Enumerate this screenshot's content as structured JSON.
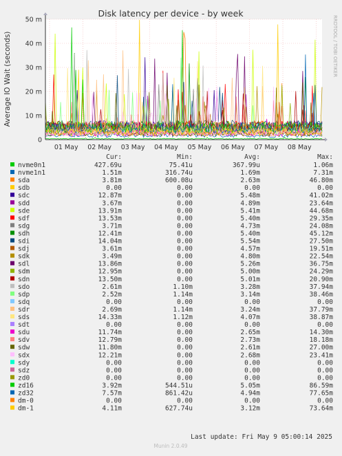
{
  "chart_data": {
    "type": "line",
    "title": "Disk latency per device - by week",
    "ylabel": "Average IO Wait (seconds)",
    "watermark": "RRDTOOL / TOBI OETIKER",
    "x_ticks": [
      "01 May",
      "02 May",
      "03 May",
      "04 May",
      "05 May",
      "06 May",
      "07 May",
      "08 May"
    ],
    "y_ticks": [
      {
        "value": 0,
        "label": "0"
      },
      {
        "value": 0.01,
        "label": "10 m"
      },
      {
        "value": 0.02,
        "label": "20 m"
      },
      {
        "value": 0.03,
        "label": "30 m"
      },
      {
        "value": 0.04,
        "label": "40 m"
      },
      {
        "value": 0.05,
        "label": "50 m"
      }
    ],
    "ylim": [
      0,
      0.05
    ],
    "grid": true,
    "columns": [
      "Cur:",
      "Min:",
      "Avg:",
      "Max:"
    ],
    "series": [
      {
        "name": "nvme0n1",
        "color": "#00cc00",
        "cur": "427.69u",
        "min": "75.41u",
        "avg": "367.99u",
        "max": "1.06m"
      },
      {
        "name": "nvme1n1",
        "color": "#0066b3",
        "cur": "1.51m",
        "min": "316.74u",
        "avg": "1.69m",
        "max": "7.31m"
      },
      {
        "name": "sda",
        "color": "#ff8000",
        "cur": "3.81m",
        "min": "600.08u",
        "avg": "2.63m",
        "max": "46.80m"
      },
      {
        "name": "sdb",
        "color": "#ffcc00",
        "cur": "0.00",
        "min": "0.00",
        "avg": "0.00",
        "max": "0.00"
      },
      {
        "name": "sdc",
        "color": "#330099",
        "cur": "12.87m",
        "min": "0.00",
        "avg": "5.48m",
        "max": "41.02m"
      },
      {
        "name": "sdd",
        "color": "#990099",
        "cur": "3.67m",
        "min": "0.00",
        "avg": "4.89m",
        "max": "23.64m"
      },
      {
        "name": "sde",
        "color": "#ccff00",
        "cur": "13.91m",
        "min": "0.00",
        "avg": "5.41m",
        "max": "44.68m"
      },
      {
        "name": "sdf",
        "color": "#ff0000",
        "cur": "13.53m",
        "min": "0.00",
        "avg": "5.40m",
        "max": "29.35m"
      },
      {
        "name": "sdg",
        "color": "#808080",
        "cur": "3.71m",
        "min": "0.00",
        "avg": "4.73m",
        "max": "24.08m"
      },
      {
        "name": "sdh",
        "color": "#008f00",
        "cur": "12.41m",
        "min": "0.00",
        "avg": "5.40m",
        "max": "45.12m"
      },
      {
        "name": "sdi",
        "color": "#00487d",
        "cur": "14.04m",
        "min": "0.00",
        "avg": "5.54m",
        "max": "27.50m"
      },
      {
        "name": "sdj",
        "color": "#b35a00",
        "cur": "3.61m",
        "min": "0.00",
        "avg": "4.57m",
        "max": "19.51m"
      },
      {
        "name": "sdk",
        "color": "#b38f00",
        "cur": "3.49m",
        "min": "0.00",
        "avg": "4.80m",
        "max": "22.54m"
      },
      {
        "name": "sdl",
        "color": "#6b006b",
        "cur": "13.86m",
        "min": "0.00",
        "avg": "5.26m",
        "max": "36.75m"
      },
      {
        "name": "sdm",
        "color": "#8fb300",
        "cur": "12.95m",
        "min": "0.00",
        "avg": "5.00m",
        "max": "24.29m"
      },
      {
        "name": "sdn",
        "color": "#b30000",
        "cur": "13.50m",
        "min": "0.00",
        "avg": "5.01m",
        "max": "20.90m"
      },
      {
        "name": "sdo",
        "color": "#bebebe",
        "cur": "2.61m",
        "min": "1.10m",
        "avg": "3.28m",
        "max": "37.94m"
      },
      {
        "name": "sdp",
        "color": "#80ff80",
        "cur": "2.52m",
        "min": "1.14m",
        "avg": "3.14m",
        "max": "38.46m"
      },
      {
        "name": "sdq",
        "color": "#80c9ff",
        "cur": "0.00",
        "min": "0.00",
        "avg": "0.00",
        "max": "0.00"
      },
      {
        "name": "sdr",
        "color": "#ffc080",
        "cur": "2.69m",
        "min": "1.14m",
        "avg": "3.24m",
        "max": "37.79m"
      },
      {
        "name": "sds",
        "color": "#ffe680",
        "cur": "14.33m",
        "min": "1.12m",
        "avg": "4.07m",
        "max": "38.87m"
      },
      {
        "name": "sdt",
        "color": "#aa80ff",
        "cur": "0.00",
        "min": "0.00",
        "avg": "0.00",
        "max": "0.00"
      },
      {
        "name": "sdu",
        "color": "#ee00cc",
        "cur": "11.74m",
        "min": "0.00",
        "avg": "2.65m",
        "max": "14.30m"
      },
      {
        "name": "sdv",
        "color": "#ff8080",
        "cur": "12.79m",
        "min": "0.00",
        "avg": "2.73m",
        "max": "18.18m"
      },
      {
        "name": "sdw",
        "color": "#666600",
        "cur": "11.80m",
        "min": "0.00",
        "avg": "2.61m",
        "max": "27.00m"
      },
      {
        "name": "sdx",
        "color": "#ffbfff",
        "cur": "12.21m",
        "min": "0.00",
        "avg": "2.68m",
        "max": "23.41m"
      },
      {
        "name": "sdy",
        "color": "#00ffcc",
        "cur": "0.00",
        "min": "0.00",
        "avg": "0.00",
        "max": "0.00"
      },
      {
        "name": "sdz",
        "color": "#cc6699",
        "cur": "0.00",
        "min": "0.00",
        "avg": "0.00",
        "max": "0.00"
      },
      {
        "name": "zd0",
        "color": "#999900",
        "cur": "0.00",
        "min": "0.00",
        "avg": "0.00",
        "max": "0.00"
      },
      {
        "name": "zd16",
        "color": "#00cc00",
        "cur": "3.92m",
        "min": "544.51u",
        "avg": "5.05m",
        "max": "86.59m"
      },
      {
        "name": "zd32",
        "color": "#0066b3",
        "cur": "7.57m",
        "min": "861.42u",
        "avg": "4.94m",
        "max": "77.65m"
      },
      {
        "name": "dm-0",
        "color": "#ff8000",
        "cur": "0.00",
        "min": "0.00",
        "avg": "0.00",
        "max": "0.00"
      },
      {
        "name": "dm-1",
        "color": "#ffcc00",
        "cur": "4.11m",
        "min": "627.74u",
        "avg": "3.12m",
        "max": "73.64m"
      }
    ],
    "last_update": "Last update: Fri May  9 05:00:14 2025",
    "footer": "Munin 2.0.49"
  }
}
